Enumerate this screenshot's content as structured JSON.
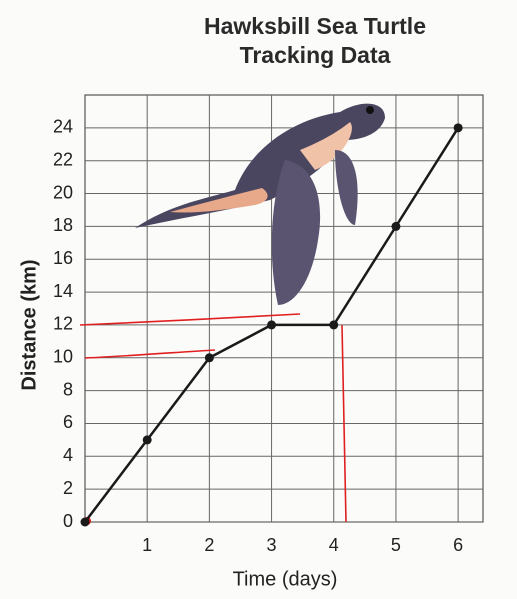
{
  "chart_data": {
    "type": "line",
    "title": "Hawksbill Sea Turtle Tracking Data",
    "x_label": "Time (days)",
    "y_label": "Distance (km)",
    "x": [
      0,
      1,
      2,
      3,
      4,
      5,
      6
    ],
    "series": [
      {
        "name": "Distance",
        "color": "#1a1a1a",
        "values": [
          0,
          5,
          10,
          12,
          12,
          18,
          24
        ]
      }
    ],
    "xlim": [
      0,
      6.4
    ],
    "ylim": [
      0,
      26
    ],
    "xticks": [
      1,
      2,
      3,
      4,
      5,
      6
    ],
    "yticks": [
      0,
      2,
      4,
      6,
      8,
      10,
      12,
      14,
      16,
      18,
      20,
      22,
      24
    ],
    "grid": true
  }
}
